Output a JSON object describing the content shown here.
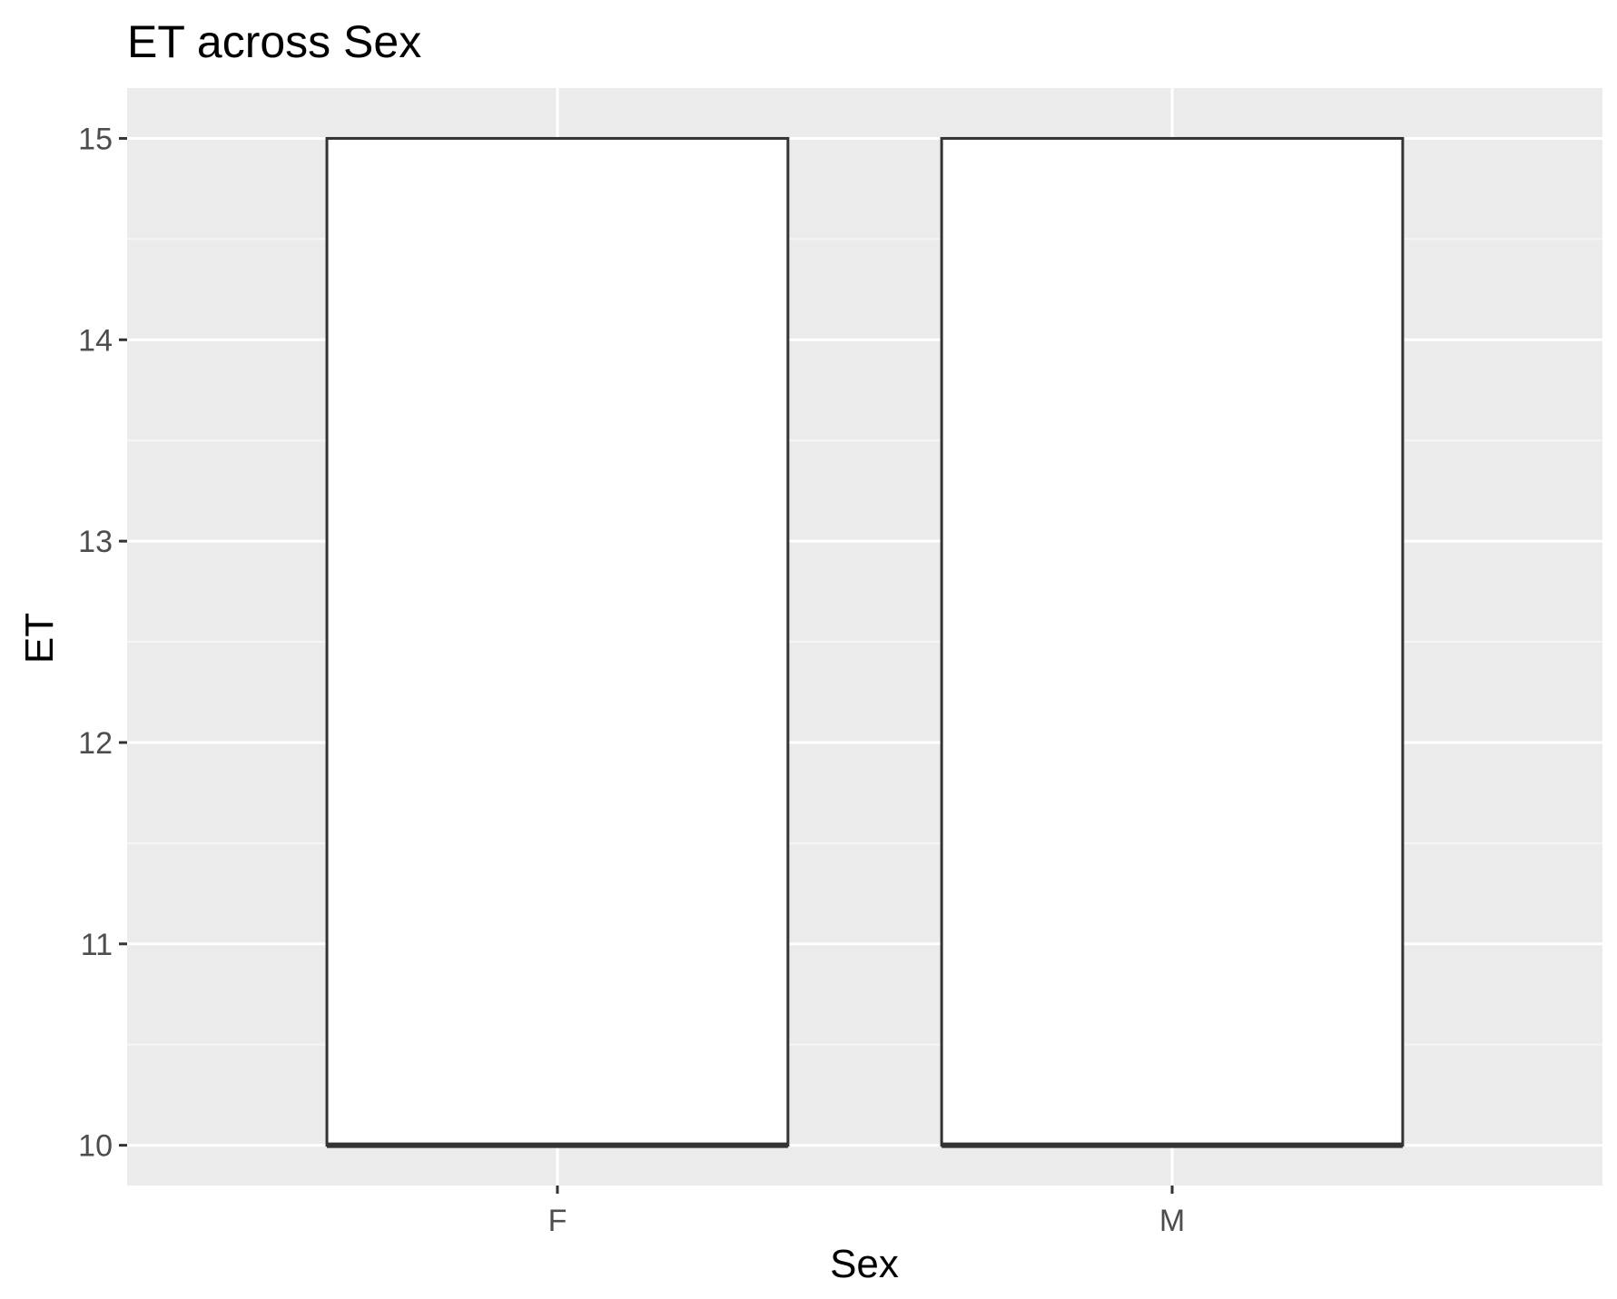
{
  "chart_data": {
    "type": "box",
    "title": "ET across Sex",
    "xlabel": "Sex",
    "ylabel": "ET",
    "categories": [
      "F",
      "M"
    ],
    "boxes": [
      {
        "category": "F",
        "min": 10,
        "q1": 10,
        "median": 10,
        "q3": 15,
        "max": 15
      },
      {
        "category": "M",
        "min": 10,
        "q1": 10,
        "median": 10,
        "q3": 15,
        "max": 15
      }
    ],
    "ylim": [
      9.8,
      15.25
    ],
    "yticks": [
      10,
      11,
      12,
      13,
      14,
      15
    ],
    "grid": true,
    "legend": "none",
    "colors": {
      "panel_background": "#ebebeb",
      "grid_major": "#ffffff",
      "grid_minor": "#f5f5f5",
      "box_fill": "#ffffff",
      "box_outline": "#333333",
      "tick_color": "#333333",
      "tick_label": "#4d4d4d",
      "text": "#000000"
    }
  }
}
